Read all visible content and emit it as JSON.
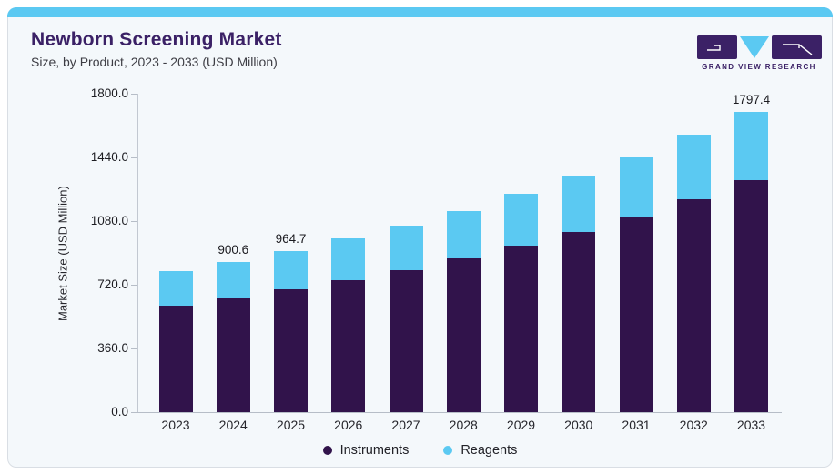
{
  "header": {
    "title": "Newborn Screening Market",
    "subtitle": "Size, by Product, 2023 - 2033 (USD Million)",
    "title_color": "#3b2166"
  },
  "logo": {
    "brand": "GRAND VIEW RESEARCH",
    "purple": "#3b2166",
    "blue": "#5bc9f2"
  },
  "colors": {
    "card_background": "#f4f8fb",
    "card_border": "#d9dee4",
    "top_strip": "#5bc9f2",
    "axis_line": "#c2c8d1"
  },
  "chart_data": {
    "type": "bar",
    "stacked": true,
    "title": "Newborn Screening Market",
    "subtitle": "Size, by Product, 2023 - 2033 (USD Million)",
    "xlabel": "",
    "ylabel": "Market Size (USD Million)",
    "ylim": [
      0,
      1800
    ],
    "yticks": [
      0,
      360,
      720,
      1080,
      1440,
      1800
    ],
    "ytick_labels": [
      "0.0",
      "360.0",
      "720.0",
      "1080.0",
      "1440.0",
      "1800.0"
    ],
    "grid": false,
    "legend_position": "bottom",
    "categories": [
      "2023",
      "2024",
      "2025",
      "2026",
      "2027",
      "2028",
      "2029",
      "2030",
      "2031",
      "2032",
      "2033"
    ],
    "series": [
      {
        "name": "Instruments",
        "color": "#31134b",
        "values": [
          636,
          685,
          734,
          790,
          849,
          919,
          996,
          1077,
          1170,
          1273,
          1387
        ]
      },
      {
        "name": "Reagents",
        "color": "#5bc9f2",
        "values": [
          207,
          215.6,
          230.7,
          249,
          266,
          283,
          310,
          332,
          353,
          386,
          410.4
        ]
      }
    ],
    "totals": [
      843,
      900.6,
      964.7,
      1039,
      1115,
      1202,
      1306,
      1409,
      1523,
      1659,
      1797.4
    ],
    "point_labels": [
      "",
      "900.6",
      "964.7",
      "",
      "",
      "",
      "",
      "",
      "",
      "",
      "1797.4"
    ]
  }
}
